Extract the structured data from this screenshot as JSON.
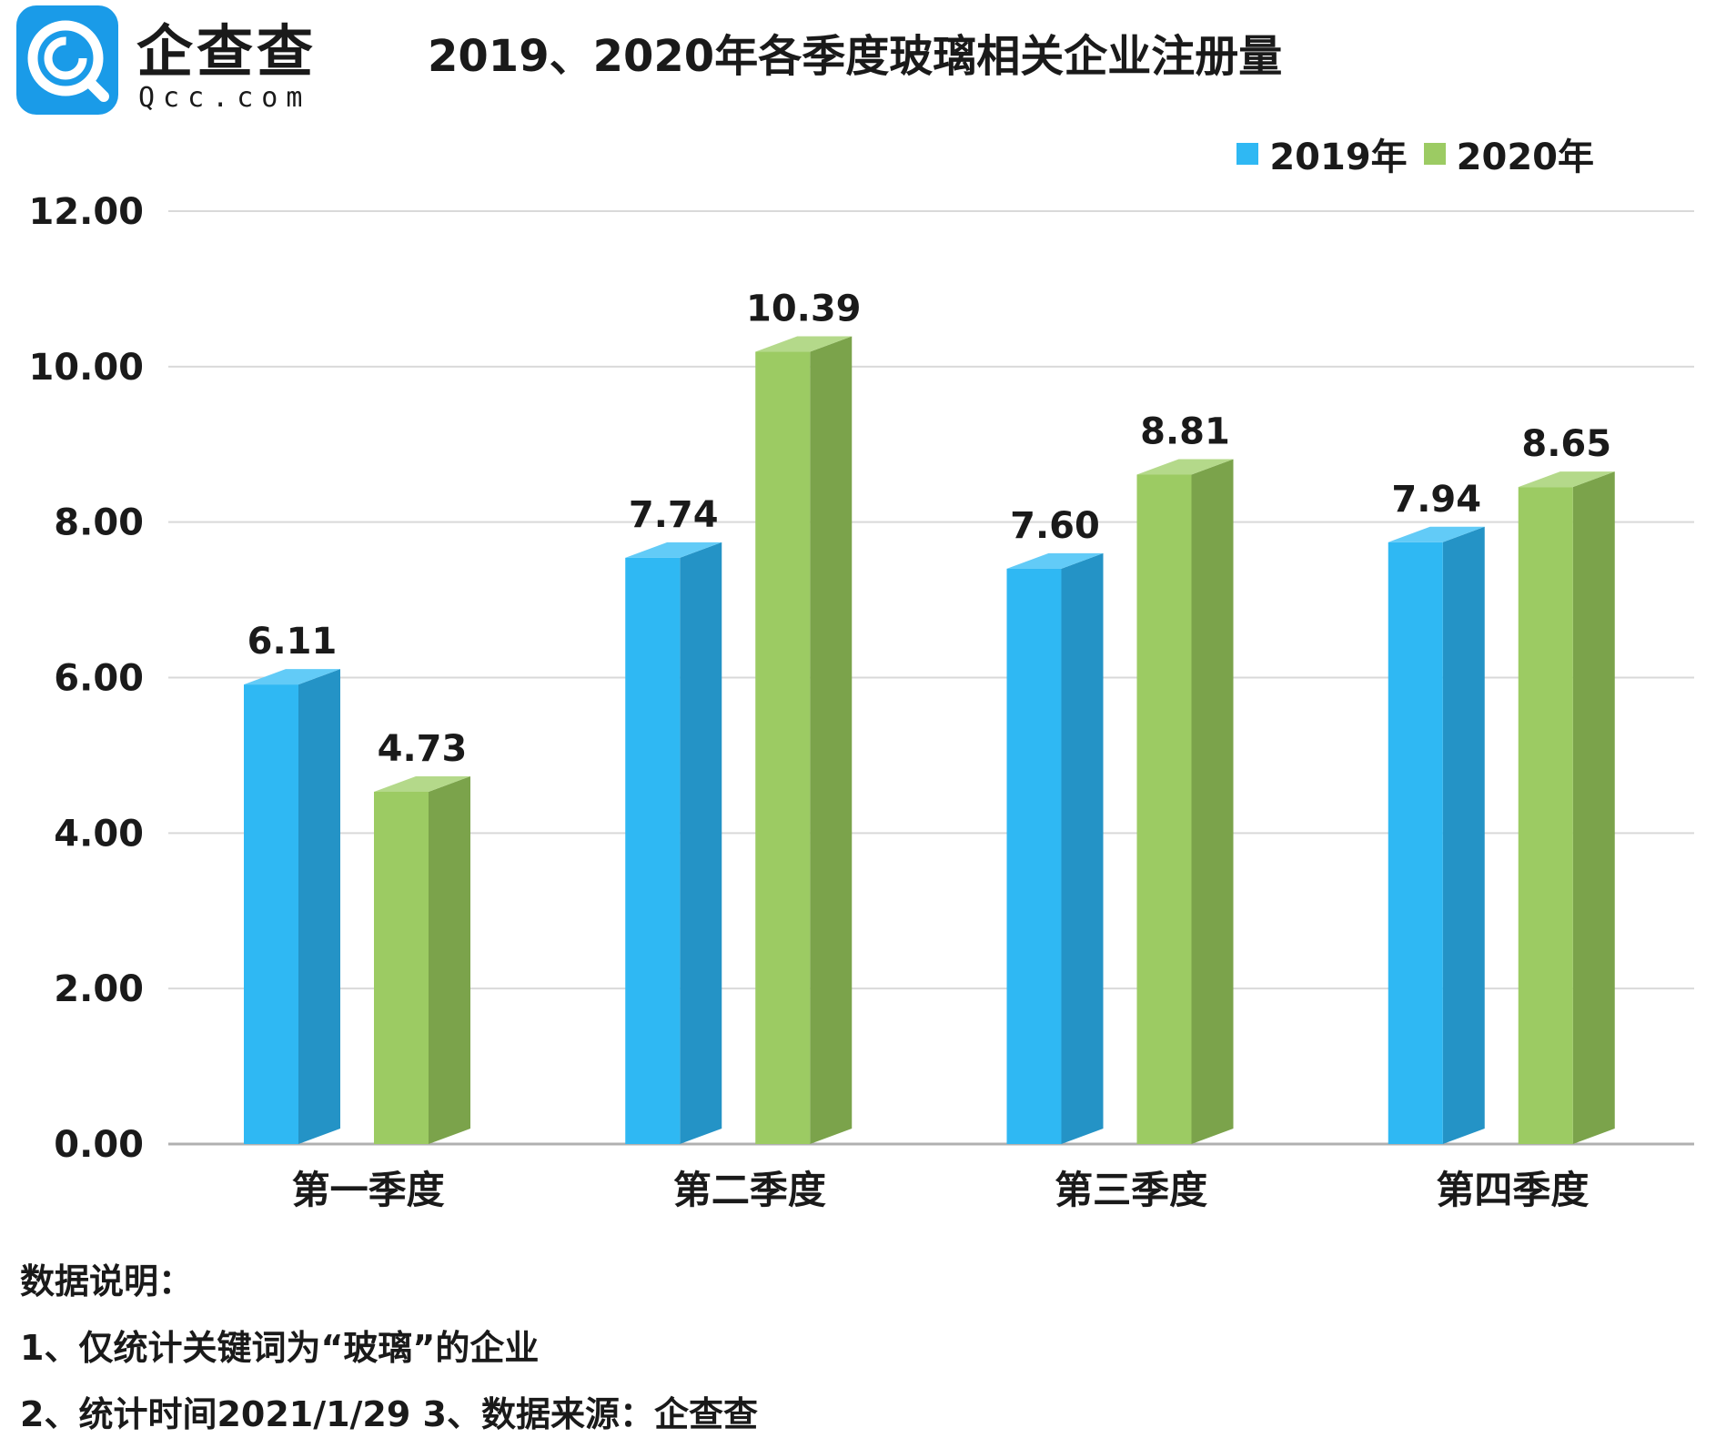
{
  "brand": {
    "name": "企查查",
    "url": "Qcc.com",
    "badge_color": "#1a9be8"
  },
  "title": "2019、2020年各季度玻璃相关企业注册量",
  "notes": [
    "数据说明：",
    "1、仅统计关键词为“玻璃”的企业",
    "2、统计时间2021/1/29    3、数据来源：企查查"
  ],
  "chart_data": {
    "type": "bar",
    "title": "2019、2020年各季度玻璃相关企业注册量",
    "xlabel": "",
    "ylabel": "",
    "categories": [
      "第一季度",
      "第二季度",
      "第三季度",
      "第四季度"
    ],
    "series": [
      {
        "name": "2019年",
        "values": [
          6.11,
          7.74,
          7.6,
          7.94
        ],
        "labels": [
          "6.11",
          "7.74",
          "7.60",
          "7.94"
        ],
        "color": "#2fb8f3",
        "side_color": "#2493c6",
        "top_color": "#62cbf7"
      },
      {
        "name": "2020年",
        "values": [
          4.73,
          10.39,
          8.81,
          8.65
        ],
        "labels": [
          "4.73",
          "10.39",
          "8.81",
          "8.65"
        ],
        "color": "#9ccb63",
        "side_color": "#7ba34b",
        "top_color": "#b4d98a"
      }
    ],
    "ylim": [
      0,
      12
    ],
    "yticks": [
      "0.00",
      "2.00",
      "4.00",
      "6.00",
      "8.00",
      "10.00",
      "12.00"
    ],
    "grid": true,
    "legend": "top-right"
  }
}
